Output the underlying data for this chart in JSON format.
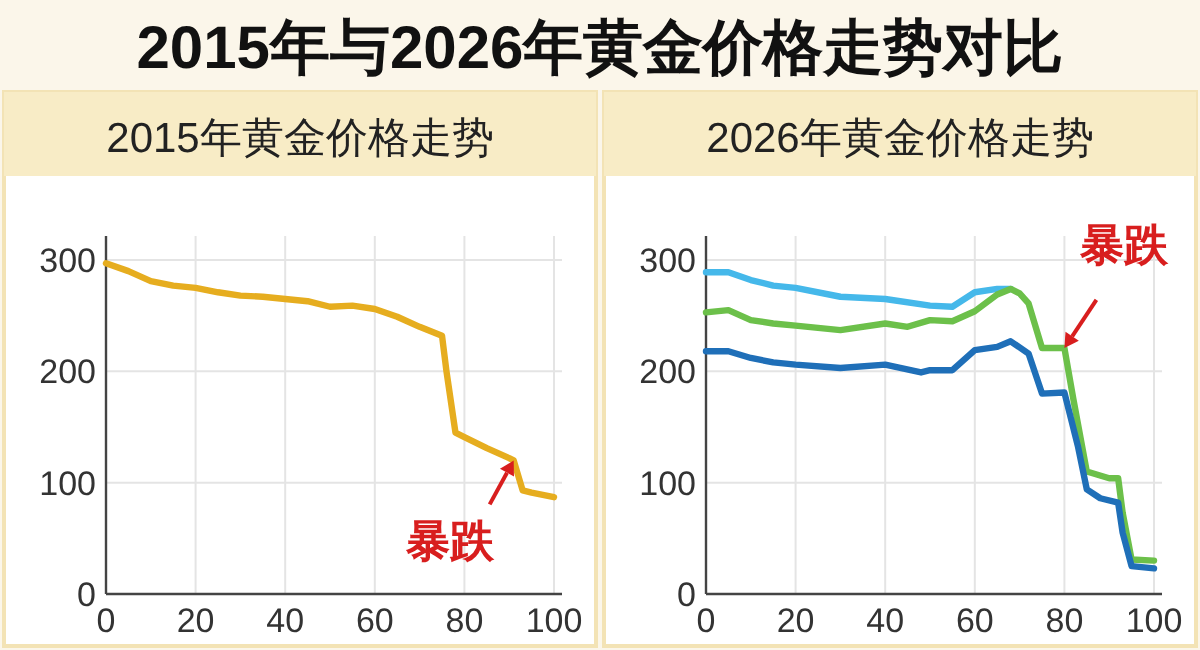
{
  "chart_data": [
    {
      "type": "line",
      "title": "2015年与2026年黄金价格走势对比",
      "subtitle": "2015年黄金价格走势",
      "xlim": [
        0,
        100
      ],
      "ylim": [
        0,
        300
      ],
      "xticks": [
        0,
        20,
        40,
        60,
        80,
        100
      ],
      "yticks": [
        0,
        100,
        200,
        300
      ],
      "grid": true,
      "annotations": [
        {
          "text": "暴跌",
          "x": 91,
          "y": 120
        }
      ],
      "series": [
        {
          "color": "#e6ad1f",
          "x": [
            0,
            5,
            10,
            15,
            20,
            25,
            30,
            35,
            40,
            45,
            50,
            55,
            60,
            65,
            70,
            75,
            76,
            78,
            80,
            85,
            90,
            91,
            93,
            95,
            100
          ],
          "values": [
            297,
            290,
            281,
            277,
            275,
            271,
            268,
            267,
            265,
            263,
            258,
            259,
            256,
            249,
            240,
            232,
            200,
            145,
            141,
            131,
            122,
            120,
            93,
            91,
            87
          ]
        }
      ]
    },
    {
      "type": "line",
      "title": "2026年黄金价格走势",
      "xlim": [
        0,
        100
      ],
      "ylim": [
        0,
        300
      ],
      "xticks": [
        0,
        20,
        40,
        60,
        80,
        100
      ],
      "yticks": [
        0,
        100,
        200,
        300
      ],
      "grid": true,
      "annotations": [
        {
          "text": "暴跌",
          "x": 80,
          "y": 221
        }
      ],
      "series": [
        {
          "color": "#45b8ea",
          "x": [
            0,
            5,
            10,
            15,
            20,
            30,
            40,
            50,
            55,
            60,
            65,
            68
          ],
          "values": [
            289,
            289,
            282,
            277,
            275,
            267,
            265,
            259,
            258,
            271,
            274,
            274
          ]
        },
        {
          "color": "#6cc04a",
          "x": [
            0,
            5,
            10,
            15,
            20,
            30,
            40,
            45,
            50,
            55,
            60,
            65,
            68,
            70,
            72,
            75,
            80,
            82,
            85,
            90,
            92,
            93,
            95,
            100
          ],
          "values": [
            253,
            255,
            246,
            243,
            241,
            237,
            243,
            240,
            246,
            245,
            254,
            269,
            274,
            270,
            261,
            221,
            221,
            175,
            110,
            104,
            104,
            73,
            31,
            30
          ]
        },
        {
          "color": "#1f6fb8",
          "x": [
            0,
            5,
            10,
            15,
            20,
            30,
            40,
            48,
            50,
            55,
            60,
            65,
            68,
            72,
            75,
            80,
            83,
            85,
            88,
            92,
            93,
            95,
            100
          ],
          "values": [
            218,
            218,
            212,
            208,
            206,
            203,
            206,
            199,
            201,
            201,
            219,
            222,
            227,
            216,
            180,
            181,
            133,
            94,
            86,
            82,
            55,
            25,
            23
          ]
        }
      ]
    }
  ]
}
